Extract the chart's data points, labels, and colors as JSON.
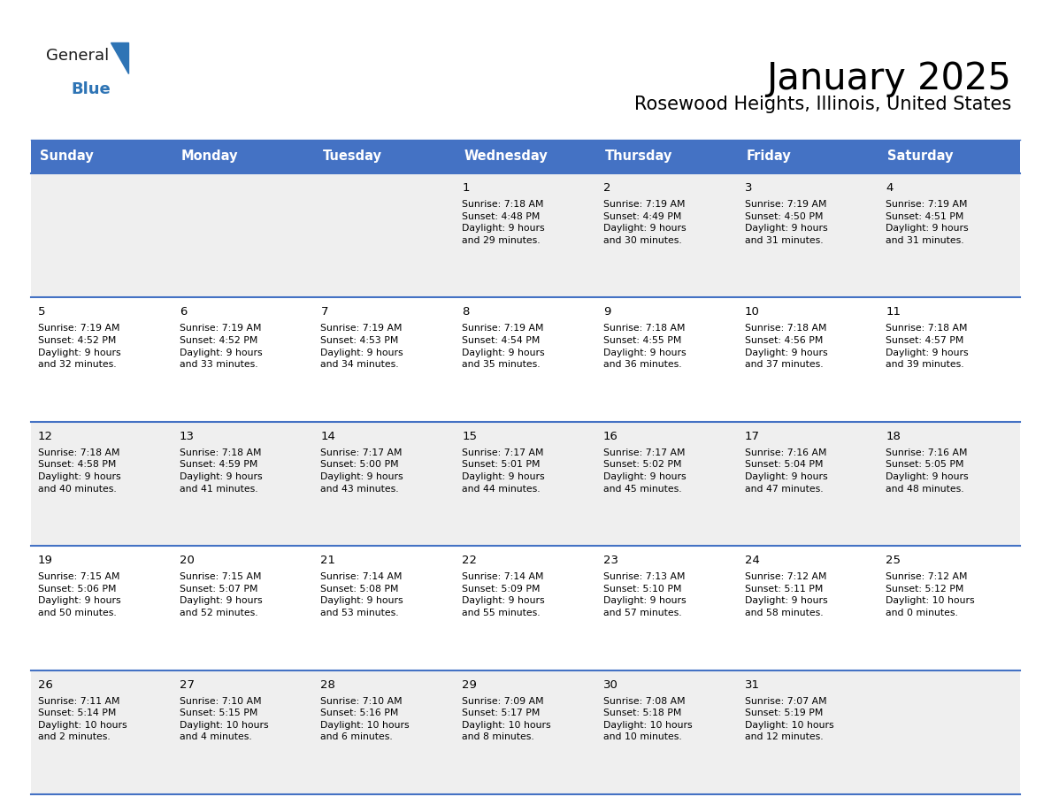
{
  "title": "January 2025",
  "subtitle": "Rosewood Heights, Illinois, United States",
  "header_bg": "#4472C4",
  "header_text_color": "#FFFFFF",
  "header_font_size": 10.5,
  "days_of_week": [
    "Sunday",
    "Monday",
    "Tuesday",
    "Wednesday",
    "Thursday",
    "Friday",
    "Saturday"
  ],
  "weeks": [
    [
      {
        "day": "",
        "info": ""
      },
      {
        "day": "",
        "info": ""
      },
      {
        "day": "",
        "info": ""
      },
      {
        "day": "1",
        "info": "Sunrise: 7:18 AM\nSunset: 4:48 PM\nDaylight: 9 hours\nand 29 minutes."
      },
      {
        "day": "2",
        "info": "Sunrise: 7:19 AM\nSunset: 4:49 PM\nDaylight: 9 hours\nand 30 minutes."
      },
      {
        "day": "3",
        "info": "Sunrise: 7:19 AM\nSunset: 4:50 PM\nDaylight: 9 hours\nand 31 minutes."
      },
      {
        "day": "4",
        "info": "Sunrise: 7:19 AM\nSunset: 4:51 PM\nDaylight: 9 hours\nand 31 minutes."
      }
    ],
    [
      {
        "day": "5",
        "info": "Sunrise: 7:19 AM\nSunset: 4:52 PM\nDaylight: 9 hours\nand 32 minutes."
      },
      {
        "day": "6",
        "info": "Sunrise: 7:19 AM\nSunset: 4:52 PM\nDaylight: 9 hours\nand 33 minutes."
      },
      {
        "day": "7",
        "info": "Sunrise: 7:19 AM\nSunset: 4:53 PM\nDaylight: 9 hours\nand 34 minutes."
      },
      {
        "day": "8",
        "info": "Sunrise: 7:19 AM\nSunset: 4:54 PM\nDaylight: 9 hours\nand 35 minutes."
      },
      {
        "day": "9",
        "info": "Sunrise: 7:18 AM\nSunset: 4:55 PM\nDaylight: 9 hours\nand 36 minutes."
      },
      {
        "day": "10",
        "info": "Sunrise: 7:18 AM\nSunset: 4:56 PM\nDaylight: 9 hours\nand 37 minutes."
      },
      {
        "day": "11",
        "info": "Sunrise: 7:18 AM\nSunset: 4:57 PM\nDaylight: 9 hours\nand 39 minutes."
      }
    ],
    [
      {
        "day": "12",
        "info": "Sunrise: 7:18 AM\nSunset: 4:58 PM\nDaylight: 9 hours\nand 40 minutes."
      },
      {
        "day": "13",
        "info": "Sunrise: 7:18 AM\nSunset: 4:59 PM\nDaylight: 9 hours\nand 41 minutes."
      },
      {
        "day": "14",
        "info": "Sunrise: 7:17 AM\nSunset: 5:00 PM\nDaylight: 9 hours\nand 43 minutes."
      },
      {
        "day": "15",
        "info": "Sunrise: 7:17 AM\nSunset: 5:01 PM\nDaylight: 9 hours\nand 44 minutes."
      },
      {
        "day": "16",
        "info": "Sunrise: 7:17 AM\nSunset: 5:02 PM\nDaylight: 9 hours\nand 45 minutes."
      },
      {
        "day": "17",
        "info": "Sunrise: 7:16 AM\nSunset: 5:04 PM\nDaylight: 9 hours\nand 47 minutes."
      },
      {
        "day": "18",
        "info": "Sunrise: 7:16 AM\nSunset: 5:05 PM\nDaylight: 9 hours\nand 48 minutes."
      }
    ],
    [
      {
        "day": "19",
        "info": "Sunrise: 7:15 AM\nSunset: 5:06 PM\nDaylight: 9 hours\nand 50 minutes."
      },
      {
        "day": "20",
        "info": "Sunrise: 7:15 AM\nSunset: 5:07 PM\nDaylight: 9 hours\nand 52 minutes."
      },
      {
        "day": "21",
        "info": "Sunrise: 7:14 AM\nSunset: 5:08 PM\nDaylight: 9 hours\nand 53 minutes."
      },
      {
        "day": "22",
        "info": "Sunrise: 7:14 AM\nSunset: 5:09 PM\nDaylight: 9 hours\nand 55 minutes."
      },
      {
        "day": "23",
        "info": "Sunrise: 7:13 AM\nSunset: 5:10 PM\nDaylight: 9 hours\nand 57 minutes."
      },
      {
        "day": "24",
        "info": "Sunrise: 7:12 AM\nSunset: 5:11 PM\nDaylight: 9 hours\nand 58 minutes."
      },
      {
        "day": "25",
        "info": "Sunrise: 7:12 AM\nSunset: 5:12 PM\nDaylight: 10 hours\nand 0 minutes."
      }
    ],
    [
      {
        "day": "26",
        "info": "Sunrise: 7:11 AM\nSunset: 5:14 PM\nDaylight: 10 hours\nand 2 minutes."
      },
      {
        "day": "27",
        "info": "Sunrise: 7:10 AM\nSunset: 5:15 PM\nDaylight: 10 hours\nand 4 minutes."
      },
      {
        "day": "28",
        "info": "Sunrise: 7:10 AM\nSunset: 5:16 PM\nDaylight: 10 hours\nand 6 minutes."
      },
      {
        "day": "29",
        "info": "Sunrise: 7:09 AM\nSunset: 5:17 PM\nDaylight: 10 hours\nand 8 minutes."
      },
      {
        "day": "30",
        "info": "Sunrise: 7:08 AM\nSunset: 5:18 PM\nDaylight: 10 hours\nand 10 minutes."
      },
      {
        "day": "31",
        "info": "Sunrise: 7:07 AM\nSunset: 5:19 PM\nDaylight: 10 hours\nand 12 minutes."
      },
      {
        "day": "",
        "info": ""
      }
    ]
  ],
  "row_colors": [
    "#EFEFEF",
    "#FFFFFF",
    "#EFEFEF",
    "#FFFFFF",
    "#EFEFEF"
  ],
  "grid_line_color": "#4472C4",
  "title_fontsize": 30,
  "subtitle_fontsize": 15,
  "day_number_fontsize": 9.5,
  "cell_text_fontsize": 7.8,
  "logo_general_color": "#1a1a1a",
  "logo_blue_color": "#2E74B5",
  "logo_triangle_color": "#2E74B5"
}
